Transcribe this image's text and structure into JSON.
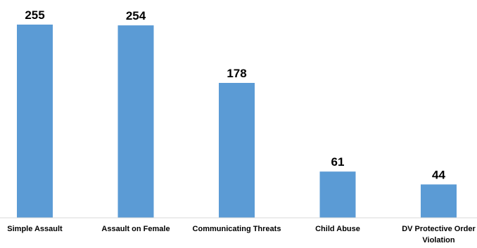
{
  "chart_data": {
    "type": "bar",
    "categories": [
      [
        "Simple Assault"
      ],
      [
        "Assault on Female"
      ],
      [
        "Communicating Threats"
      ],
      [
        "Child Abuse"
      ],
      [
        "DV Protective Order",
        "Violation"
      ]
    ],
    "values": [
      255,
      254,
      178,
      61,
      44
    ],
    "data_labels": [
      "255",
      "254",
      "178",
      "61",
      "44"
    ],
    "bar_color": "#5b9bd5",
    "title": "",
    "xlabel": "",
    "ylabel": "",
    "ylim": [
      0,
      255
    ],
    "grid": false,
    "legend": "none"
  }
}
